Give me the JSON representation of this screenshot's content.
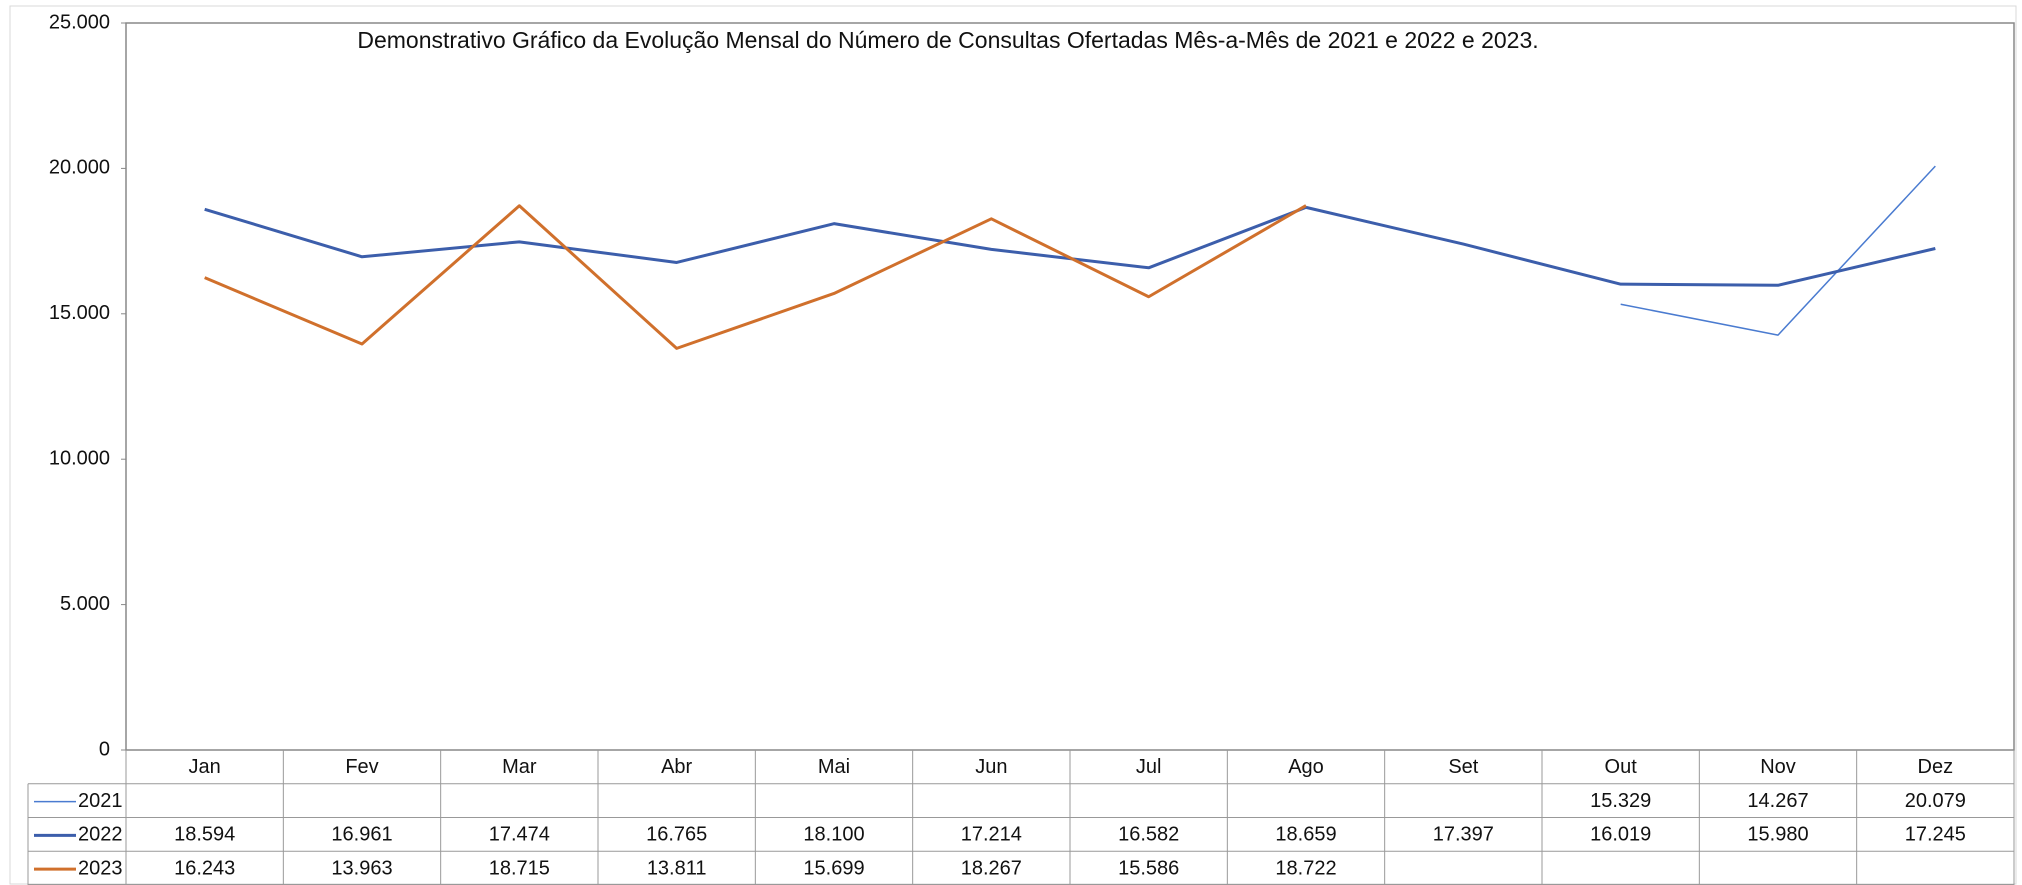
{
  "chart_data": {
    "type": "line",
    "title": "Demonstrativo Gráfico da Evolução Mensal do Número de Consultas Ofertadas Mês-a-Mês de 2021 e 2022 e 2023.",
    "categories": [
      "Jan",
      "Fev",
      "Mar",
      "Abr",
      "Mai",
      "Jun",
      "Jul",
      "Ago",
      "Set",
      "Out",
      "Nov",
      "Dez"
    ],
    "series": [
      {
        "name": "2021",
        "color": "#4a7bd0",
        "width": 1.5,
        "values": [
          null,
          null,
          null,
          null,
          null,
          null,
          null,
          null,
          null,
          15329,
          14267,
          20079
        ],
        "value_labels": [
          null,
          null,
          null,
          null,
          null,
          null,
          null,
          null,
          null,
          "15.329",
          "14.267",
          "20.079"
        ]
      },
      {
        "name": "2022",
        "color": "#3c5eab",
        "width": 3,
        "values": [
          18594,
          16961,
          17474,
          16765,
          18100,
          17214,
          16582,
          18659,
          17397,
          16019,
          15980,
          17245
        ],
        "value_labels": [
          "18.594",
          "16.961",
          "17.474",
          "16.765",
          "18.100",
          "17.214",
          "16.582",
          "18.659",
          "17.397",
          "16.019",
          "15.980",
          "17.245"
        ]
      },
      {
        "name": "2023",
        "color": "#d0702c",
        "width": 3,
        "values": [
          16243,
          13963,
          18715,
          13811,
          15699,
          18267,
          15586,
          18722,
          null,
          null,
          null,
          null
        ],
        "value_labels": [
          "16.243",
          "13.963",
          "18.715",
          "13.811",
          "15.699",
          "18.267",
          "15.586",
          "18.722",
          null,
          null,
          null,
          null
        ]
      }
    ],
    "ylim": [
      0,
      25000
    ],
    "yticks": [
      0,
      {
        "value": 5000,
        "label": "5.000"
      },
      {
        "value": 10000,
        "label": "10.000"
      },
      {
        "value": 15000,
        "label": "15.000"
      },
      {
        "value": 20000,
        "label": "20.000"
      },
      {
        "value": 25000,
        "label": "25.000"
      }
    ],
    "grid": false
  }
}
